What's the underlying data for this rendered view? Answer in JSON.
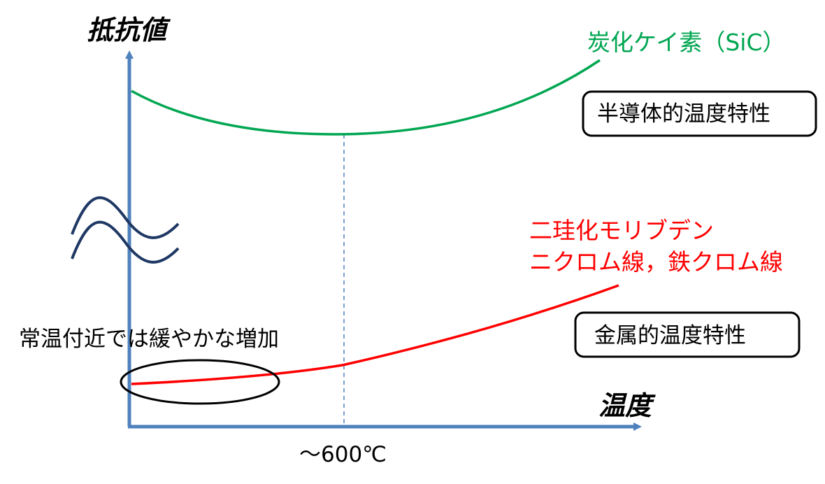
{
  "axes": {
    "y_title": "抵抗値",
    "x_title": "温度",
    "x_marker_label": "～600℃"
  },
  "series": {
    "sic": {
      "label": "炭化ケイ素（SiC）",
      "color": "#00a651"
    },
    "metal": {
      "label_line1": "二珪化モリブデン",
      "label_line2": "ニクロム線，鉄クロム線",
      "color": "#ff0000"
    }
  },
  "boxes": {
    "semiconductor": "半導体的温度特性",
    "metallic": "金属的温度特性"
  },
  "annotations": {
    "room_temp": "常温付近では緩やかな増加"
  },
  "colors": {
    "axis": "#4f81bd",
    "break_mark": "#1f3864",
    "guide_line": "#4f81bd"
  }
}
